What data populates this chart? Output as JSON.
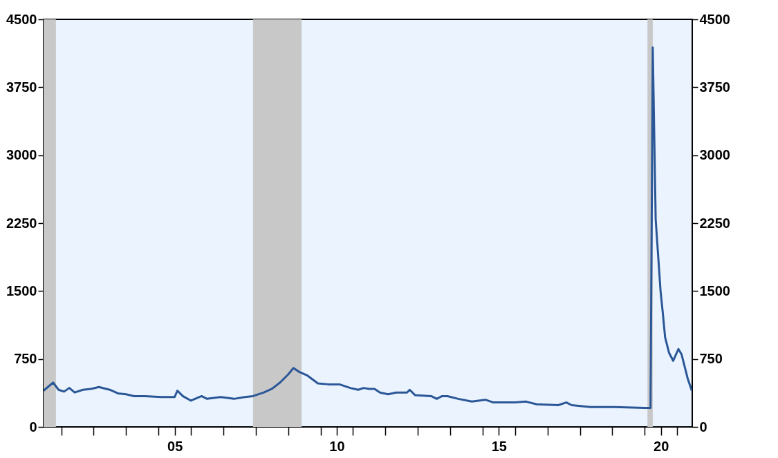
{
  "chart_data": {
    "type": "line",
    "x": [
      "2001-06-15",
      "2001-10",
      "2001-12",
      "2002-02",
      "2002-04",
      "2002-06",
      "2002-09",
      "2002-12",
      "2003-03",
      "2003-07",
      "2003-10",
      "2004-01",
      "2004-04",
      "2004-08",
      "2005-02",
      "2005-07",
      "2005-08",
      "2005-10",
      "2006-01",
      "2006-05",
      "2006-07",
      "2006-12",
      "2007-05",
      "2007-09",
      "2007-12",
      "2008-04",
      "2008-07",
      "2008-10",
      "2009-01",
      "2009-03",
      "2009-05",
      "2009-08",
      "2009-12",
      "2010-04",
      "2010-08",
      "2010-12",
      "2011-03",
      "2011-05",
      "2011-07",
      "2011-09",
      "2011-11",
      "2012-02",
      "2012-05",
      "2012-09",
      "2012-10",
      "2012-12",
      "2013-06",
      "2013-08",
      "2013-10",
      "2013-12",
      "2014-04",
      "2014-09",
      "2015-02",
      "2015-05",
      "2016-01",
      "2016-05",
      "2016-09",
      "2017-05",
      "2017-08",
      "2017-10",
      "2018-05",
      "2019-02",
      "2020-01",
      "2020-03-07",
      "2020-04-01",
      "2020-05-04",
      "2020-06-28",
      "2020-07-20",
      "2020-08-18",
      "2020-10-01",
      "2020-11-17",
      "2021-01-15",
      "2021-02-20",
      "2021-05-01",
      "2021-06-15"
    ],
    "series": [
      {
        "color": "#2b5797",
        "values": [
          400,
          490,
          410,
          390,
          430,
          380,
          410,
          420,
          440,
          410,
          370,
          360,
          340,
          340,
          330,
          330,
          400,
          340,
          290,
          340,
          310,
          330,
          310,
          330,
          340,
          380,
          420,
          490,
          580,
          650,
          610,
          570,
          480,
          470,
          470,
          430,
          410,
          430,
          420,
          420,
          380,
          360,
          380,
          380,
          410,
          350,
          340,
          310,
          340,
          340,
          310,
          280,
          300,
          270,
          270,
          280,
          250,
          240,
          270,
          240,
          220,
          220,
          210,
          210,
          4190,
          2290,
          1500,
          1290,
          990,
          820,
          730,
          860,
          800,
          530,
          400
        ]
      }
    ],
    "xlim": [
      "2001-06-15",
      "2021-06-20"
    ],
    "xticks": [
      {
        "value": "2002-01-01",
        "label": null
      },
      {
        "value": "2003-01-01",
        "label": null
      },
      {
        "value": "2004-01-01",
        "label": null
      },
      {
        "value": "2005-01-01",
        "label": null
      },
      {
        "value": "2005-07-02",
        "label": "05"
      },
      {
        "value": "2006-01-01",
        "label": null
      },
      {
        "value": "2007-01-01",
        "label": null
      },
      {
        "value": "2008-01-01",
        "label": null
      },
      {
        "value": "2009-01-01",
        "label": null
      },
      {
        "value": "2010-01-01",
        "label": null
      },
      {
        "value": "2010-07-02",
        "label": "10"
      },
      {
        "value": "2011-01-01",
        "label": null
      },
      {
        "value": "2012-01-01",
        "label": null
      },
      {
        "value": "2013-01-01",
        "label": null
      },
      {
        "value": "2014-01-01",
        "label": null
      },
      {
        "value": "2015-01-01",
        "label": null
      },
      {
        "value": "2015-07-02",
        "label": "15"
      },
      {
        "value": "2016-01-01",
        "label": null
      },
      {
        "value": "2017-01-01",
        "label": null
      },
      {
        "value": "2018-01-01",
        "label": null
      },
      {
        "value": "2019-01-01",
        "label": null
      },
      {
        "value": "2020-01-01",
        "label": null
      },
      {
        "value": "2020-07-02",
        "label": "20"
      },
      {
        "value": "2021-01-01",
        "label": null
      }
    ],
    "ylim": [
      0,
      4500
    ],
    "yticks": [
      0,
      750,
      1500,
      2250,
      3000,
      3750,
      4500
    ],
    "y2lim": [
      0,
      4500
    ],
    "y2ticks": [
      0,
      750,
      1500,
      2250,
      3000,
      3750,
      4500
    ],
    "bands": [
      {
        "axis": "x",
        "from": "2001-06-15",
        "to": "2001-11-01",
        "color": "#c8c8c8"
      },
      {
        "axis": "x",
        "from": "2007-12-01",
        "to": "2009-06-01",
        "color": "#c8c8c8"
      },
      {
        "axis": "x",
        "from": "2020-02-01",
        "to": "2020-04-01",
        "color": "#c8c8c8"
      }
    ],
    "grid": false,
    "line_style": "solid",
    "marker": "none"
  }
}
